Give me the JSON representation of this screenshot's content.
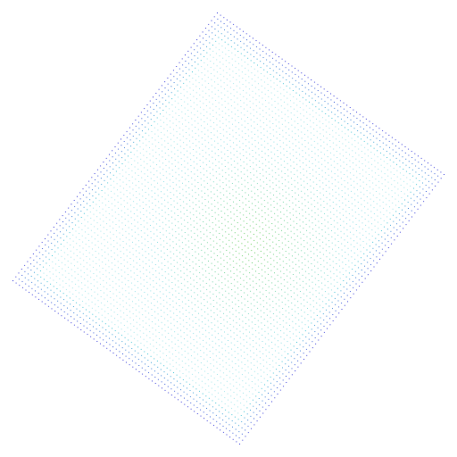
{
  "figure": {
    "kind": "dot-grid",
    "colors": {
      "background": "#ffffff",
      "edge": "#2a2fd6",
      "mid": "#34c7d3",
      "center": "#56c51e"
    }
  }
}
